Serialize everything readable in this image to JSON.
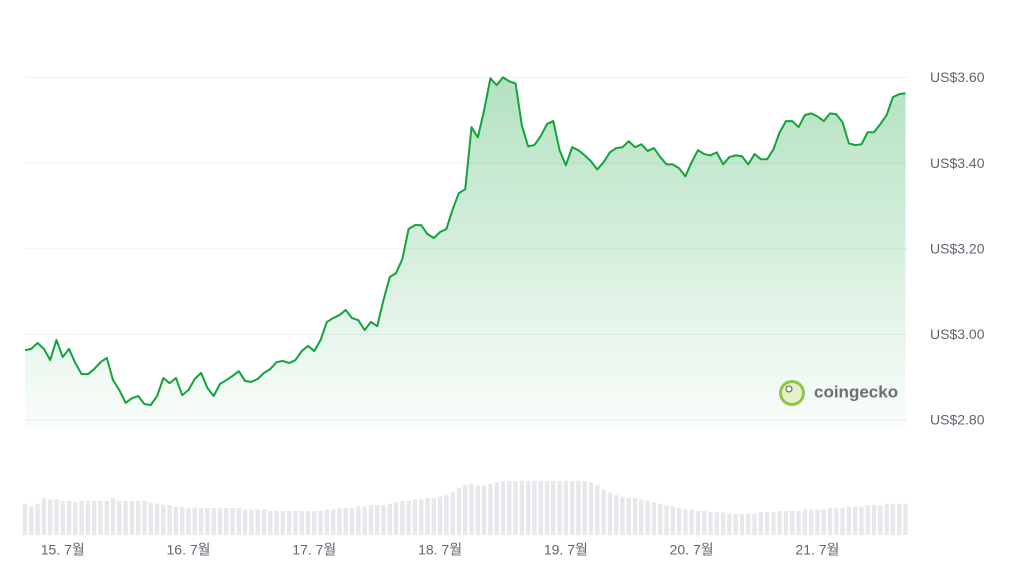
{
  "chart_data": {
    "type": "area-line",
    "color": "#12a33b",
    "volume_color": "#e6e8eb",
    "watermark": "coingecko",
    "grid": true,
    "xlim": [
      14.7,
      21.72
    ],
    "ylim": [
      2.8,
      3.65
    ],
    "xticks": [
      {
        "value": 15,
        "label": "15. 7월"
      },
      {
        "value": 16,
        "label": "16. 7월"
      },
      {
        "value": 17,
        "label": "17. 7월"
      },
      {
        "value": 18,
        "label": "18. 7월"
      },
      {
        "value": 19,
        "label": "19. 7월"
      },
      {
        "value": 20,
        "label": "20. 7월"
      },
      {
        "value": 21,
        "label": "21. 7월"
      }
    ],
    "yticks": [
      {
        "value": 2.8,
        "label": "US$2.80"
      },
      {
        "value": 3.0,
        "label": "US$3.00"
      },
      {
        "value": 3.2,
        "label": "US$3.20"
      },
      {
        "value": 3.4,
        "label": "US$3.40"
      },
      {
        "value": 3.6,
        "label": "US$3.60"
      }
    ],
    "x": [
      14.7,
      14.75,
      14.8,
      14.85,
      14.9,
      14.95,
      15.0,
      15.05,
      15.1,
      15.15,
      15.2,
      15.25,
      15.3,
      15.35,
      15.4,
      15.45,
      15.5,
      15.55,
      15.6,
      15.65,
      15.7,
      15.75,
      15.8,
      15.85,
      15.9,
      15.95,
      16.0,
      16.05,
      16.1,
      16.15,
      16.2,
      16.25,
      16.3,
      16.35,
      16.4,
      16.45,
      16.5,
      16.55,
      16.6,
      16.65,
      16.7,
      16.75,
      16.8,
      16.85,
      16.9,
      16.95,
      17.0,
      17.05,
      17.1,
      17.15,
      17.2,
      17.25,
      17.3,
      17.35,
      17.4,
      17.45,
      17.5,
      17.55,
      17.6,
      17.65,
      17.7,
      17.75,
      17.8,
      17.85,
      17.9,
      17.95,
      18.0,
      18.05,
      18.1,
      18.15,
      18.2,
      18.25,
      18.3,
      18.35,
      18.4,
      18.45,
      18.5,
      18.55,
      18.6,
      18.65,
      18.7,
      18.75,
      18.8,
      18.85,
      18.9,
      18.95,
      19.0,
      19.05,
      19.1,
      19.15,
      19.2,
      19.25,
      19.3,
      19.35,
      19.4,
      19.45,
      19.5,
      19.55,
      19.6,
      19.65,
      19.7,
      19.75,
      19.8,
      19.85,
      19.9,
      19.95,
      20.0,
      20.05,
      20.1,
      20.15,
      20.2,
      20.25,
      20.3,
      20.35,
      20.4,
      20.45,
      20.5,
      20.55,
      20.6,
      20.65,
      20.7,
      20.75,
      20.8,
      20.85,
      20.9,
      20.95,
      21.0,
      21.05,
      21.1,
      21.15,
      21.2,
      21.25,
      21.3,
      21.35,
      21.4,
      21.45,
      21.5,
      21.55,
      21.6,
      21.65,
      21.7
    ],
    "values": [
      2.963,
      2.966,
      2.98,
      2.966,
      2.94,
      2.987,
      2.947,
      2.966,
      2.933,
      2.907,
      2.907,
      2.919,
      2.935,
      2.945,
      2.893,
      2.87,
      2.84,
      2.851,
      2.856,
      2.837,
      2.835,
      2.856,
      2.898,
      2.886,
      2.898,
      2.858,
      2.87,
      2.896,
      2.91,
      2.875,
      2.856,
      2.884,
      2.893,
      2.903,
      2.914,
      2.891,
      2.889,
      2.896,
      2.91,
      2.919,
      2.935,
      2.938,
      2.933,
      2.94,
      2.961,
      2.973,
      2.961,
      2.987,
      3.029,
      3.038,
      3.045,
      3.057,
      3.038,
      3.033,
      3.01,
      3.029,
      3.019,
      3.08,
      3.134,
      3.143,
      3.176,
      3.246,
      3.255,
      3.255,
      3.234,
      3.225,
      3.239,
      3.246,
      3.292,
      3.33,
      3.339,
      3.484,
      3.46,
      3.523,
      3.598,
      3.582,
      3.6,
      3.591,
      3.586,
      3.488,
      3.439,
      3.442,
      3.463,
      3.491,
      3.498,
      3.43,
      3.395,
      3.437,
      3.43,
      3.418,
      3.404,
      3.385,
      3.402,
      3.425,
      3.435,
      3.437,
      3.451,
      3.437,
      3.444,
      3.428,
      3.435,
      3.414,
      3.397,
      3.397,
      3.388,
      3.369,
      3.402,
      3.43,
      3.421,
      3.418,
      3.425,
      3.397,
      3.414,
      3.418,
      3.416,
      3.397,
      3.421,
      3.409,
      3.409,
      3.432,
      3.472,
      3.498,
      3.498,
      3.484,
      3.512,
      3.516,
      3.509,
      3.498,
      3.516,
      3.514,
      3.495,
      3.446,
      3.442,
      3.444,
      3.472,
      3.472,
      3.491,
      3.512,
      3.554,
      3.561,
      3.563
    ],
    "volume": [
      22,
      20,
      22,
      26,
      25,
      25,
      24,
      24,
      23,
      24,
      24,
      24,
      24,
      24,
      26,
      24,
      24,
      24,
      24,
      24,
      23,
      22,
      21,
      21,
      20,
      20,
      19,
      19,
      19,
      19,
      19,
      19,
      19,
      19,
      19,
      18,
      18,
      18,
      18,
      17,
      17,
      17,
      17,
      17,
      17,
      17,
      17,
      17,
      18,
      18,
      19,
      19,
      19,
      20,
      20,
      21,
      21,
      21,
      22,
      23,
      24,
      24,
      25,
      25,
      26,
      26,
      27,
      28,
      30,
      33,
      35,
      36,
      35,
      35,
      36,
      37,
      38,
      38,
      38,
      38,
      38,
      38,
      38,
      38,
      38,
      38,
      38,
      38,
      38,
      38,
      37,
      35,
      32,
      30,
      28,
      27,
      26,
      26,
      25,
      24,
      23,
      22,
      21,
      20,
      19,
      18,
      18,
      17,
      17,
      16,
      16,
      16,
      15,
      15,
      15,
      15,
      15,
      16,
      16,
      16,
      17,
      17,
      17,
      17,
      18,
      18,
      18,
      18,
      19,
      19,
      19,
      20,
      20,
      20,
      21,
      21,
      21,
      22,
      22,
      22,
      22
    ]
  }
}
